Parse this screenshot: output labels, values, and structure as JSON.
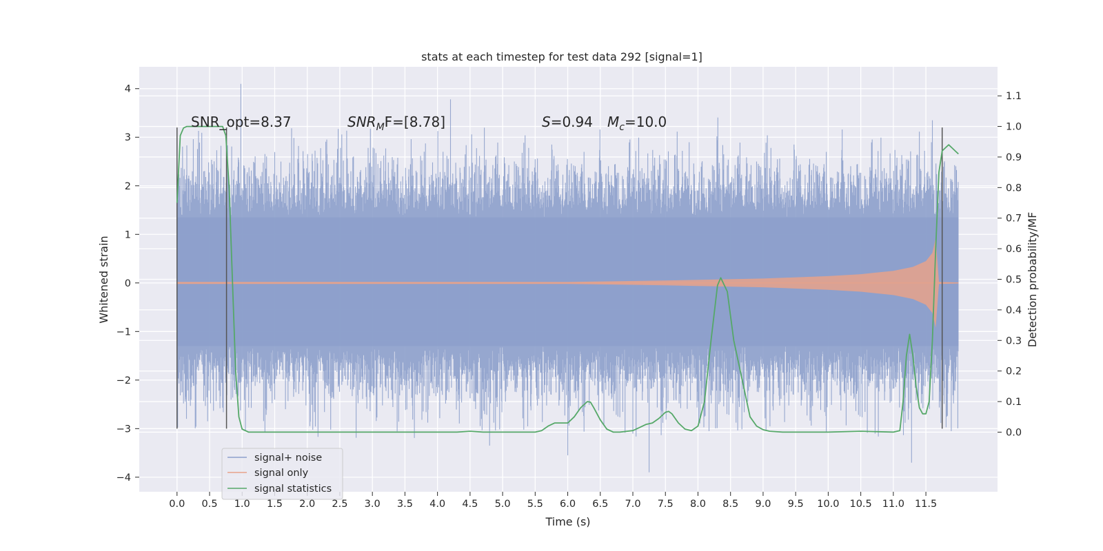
{
  "chart_data": {
    "type": "line",
    "title": "stats at each timestep for test data 292 [signal=1]",
    "xlabel": "Time (s)",
    "ylabel_left": "Whitened strain",
    "ylabel_right": "Detection probability/MF",
    "xlim": [
      -0.58,
      12.6
    ],
    "ylim_left": [
      -4.3,
      4.45
    ],
    "ylim_right": [
      -0.195,
      1.195
    ],
    "x_ticks": [
      "0.0",
      "0.5",
      "1.0",
      "1.5",
      "2.0",
      "2.5",
      "3.0",
      "3.5",
      "4.0",
      "4.5",
      "5.0",
      "5.5",
      "6.0",
      "6.5",
      "7.0",
      "7.5",
      "8.0",
      "8.5",
      "9.0",
      "9.5",
      "10.0",
      "10.5",
      "11.0",
      "11.5"
    ],
    "y_ticks_left": [
      "−4",
      "−3",
      "−2",
      "−1",
      "0",
      "1",
      "2",
      "3",
      "4"
    ],
    "y_ticks_right": [
      "0.0",
      "0.1",
      "0.2",
      "0.3",
      "0.4",
      "0.5",
      "0.6",
      "0.7",
      "0.8",
      "0.9",
      "1.0",
      "1.1"
    ],
    "grid": true,
    "background": "#eaeaf2",
    "legend_position": "lower-left",
    "annotations": {
      "snr_opt": "SNR_opt=8.37",
      "snr_mf_prefix": "SNR",
      "snr_mf_sub": "M",
      "snr_mf_suffix": "F=[8.78]",
      "s_prefix": "S",
      "s_suffix": "=0.94",
      "mc_prefix": "M",
      "mc_sub": "c",
      "mc_suffix": "=10.0"
    },
    "window_markers": [
      {
        "x": 0.0,
        "y_range": [
          -3.0,
          3.2
        ]
      },
      {
        "x": 0.76,
        "y_range": [
          -3.0,
          3.2
        ]
      },
      {
        "x": 11.75,
        "y_range": [
          -3.0,
          3.2
        ]
      }
    ],
    "series": [
      {
        "name": "signal+ noise",
        "color": "#8da0cb",
        "axis": "left",
        "x_range": [
          0.0,
          12.0
        ],
        "core_band": [
          -1.3,
          1.35
        ],
        "extent": [
          -3.9,
          4.1
        ],
        "peaks": [
          [
            0.98,
            4.1
          ],
          [
            4.2,
            3.78
          ],
          [
            11.28,
            -3.7
          ],
          [
            7.25,
            -3.9
          ],
          [
            4.8,
            -3.35
          ],
          [
            6.0,
            -3.55
          ],
          [
            11.6,
            3.35
          ]
        ]
      },
      {
        "name": "signal only",
        "color": "#e8a28a",
        "axis": "left",
        "x_range": [
          0.0,
          12.0
        ],
        "envelope": [
          [
            0.0,
            0.02
          ],
          [
            6.0,
            0.02
          ],
          [
            7.5,
            0.05
          ],
          [
            9.0,
            0.09
          ],
          [
            10.0,
            0.14
          ],
          [
            10.5,
            0.18
          ],
          [
            11.0,
            0.25
          ],
          [
            11.3,
            0.33
          ],
          [
            11.5,
            0.45
          ],
          [
            11.6,
            0.62
          ],
          [
            11.65,
            0.92
          ],
          [
            11.7,
            0.02
          ],
          [
            12.0,
            0.01
          ]
        ]
      },
      {
        "name": "signal statistics",
        "color": "#55a868",
        "axis": "right",
        "x": [
          0.0,
          0.05,
          0.1,
          0.15,
          0.2,
          0.3,
          0.4,
          0.5,
          0.6,
          0.65,
          0.7,
          0.75,
          0.8,
          0.85,
          0.9,
          0.95,
          1.0,
          1.1,
          1.5,
          2.0,
          2.5,
          3.0,
          3.5,
          4.0,
          4.3,
          4.5,
          4.7,
          5.0,
          5.5,
          5.6,
          5.7,
          5.8,
          5.9,
          6.0,
          6.1,
          6.2,
          6.3,
          6.35,
          6.4,
          6.5,
          6.6,
          6.7,
          6.8,
          7.0,
          7.1,
          7.2,
          7.3,
          7.4,
          7.5,
          7.55,
          7.6,
          7.7,
          7.8,
          7.9,
          8.0,
          8.1,
          8.2,
          8.3,
          8.35,
          8.45,
          8.55,
          8.7,
          8.8,
          8.9,
          9.0,
          9.1,
          9.3,
          9.5,
          10.0,
          10.5,
          11.0,
          11.1,
          11.15,
          11.2,
          11.25,
          11.3,
          11.35,
          11.4,
          11.45,
          11.5,
          11.55,
          11.6,
          11.65,
          11.7,
          11.75,
          11.8,
          11.85,
          11.9,
          11.95,
          12.0
        ],
        "y": [
          0.75,
          0.97,
          0.995,
          1.0,
          1.0,
          1.0,
          1.0,
          1.0,
          1.0,
          1.0,
          1.0,
          0.97,
          0.8,
          0.5,
          0.2,
          0.05,
          0.01,
          0.0,
          0.0,
          0.0,
          0.0,
          0.0,
          0.0,
          0.0,
          0.0,
          0.003,
          0.0,
          0.0,
          0.0,
          0.005,
          0.02,
          0.03,
          0.03,
          0.03,
          0.05,
          0.08,
          0.1,
          0.098,
          0.08,
          0.04,
          0.01,
          0.0,
          0.0,
          0.005,
          0.015,
          0.025,
          0.03,
          0.045,
          0.065,
          0.068,
          0.06,
          0.03,
          0.01,
          0.005,
          0.02,
          0.1,
          0.3,
          0.48,
          0.505,
          0.46,
          0.3,
          0.15,
          0.05,
          0.02,
          0.008,
          0.003,
          0.0,
          0.0,
          0.0,
          0.003,
          0.0,
          0.005,
          0.1,
          0.25,
          0.32,
          0.25,
          0.15,
          0.08,
          0.06,
          0.06,
          0.1,
          0.3,
          0.6,
          0.85,
          0.92,
          0.93,
          0.94,
          0.93,
          0.92,
          0.91
        ]
      }
    ]
  }
}
